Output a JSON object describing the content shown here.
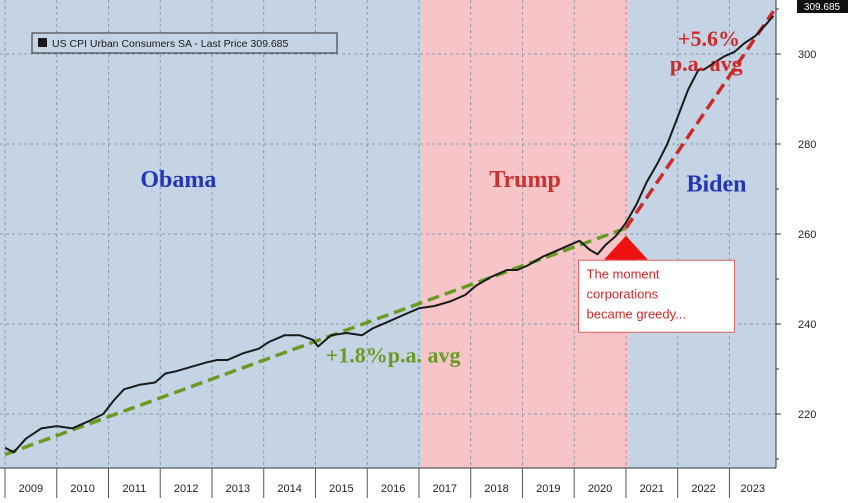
{
  "chart_data": {
    "type": "line",
    "legend": {
      "label": "US CPI Urban Consumers SA - Last Price 309.685",
      "placement": "top-left"
    },
    "last_price_badge": "309.685",
    "x_tick_labels": [
      "2009",
      "2010",
      "2011",
      "2012",
      "2013",
      "2014",
      "2015",
      "2016",
      "2017",
      "2018",
      "2019",
      "2020",
      "2021",
      "2022",
      "2023"
    ],
    "xlim": [
      2009,
      2023.9
    ],
    "ylim": [
      208,
      312
    ],
    "y_ticks": [
      220,
      240,
      260,
      280,
      300
    ],
    "grid": true,
    "y_axis_side": "right",
    "periods": [
      {
        "label": "Obama",
        "start": 2009.0,
        "end": 2017.05,
        "color": "#c5d4e5",
        "label_color": "#2436b5",
        "label_x": 2012.35,
        "label_y": 270.5
      },
      {
        "label": "Trump",
        "start": 2017.05,
        "end": 2021.05,
        "color": "#f7c5c7",
        "label_color": "#c93232",
        "label_x": 2019.05,
        "label_y": 270.5
      },
      {
        "label": "Biden",
        "start": 2021.05,
        "end": 2023.9,
        "color": "#c5d4e5",
        "label_color": "#2436b5",
        "label_x": 2022.75,
        "label_y": 269.5
      }
    ],
    "series": [
      {
        "color": "#1a1a1a",
        "x": [
          2009.0,
          2009.17,
          2009.4,
          2009.7,
          2010.0,
          2010.3,
          2010.6,
          2010.9,
          2011.1,
          2011.3,
          2011.6,
          2011.9,
          2012.1,
          2012.3,
          2012.6,
          2012.9,
          2013.1,
          2013.3,
          2013.6,
          2013.9,
          2014.1,
          2014.4,
          2014.7,
          2014.95,
          2015.05,
          2015.3,
          2015.6,
          2015.9,
          2016.1,
          2016.4,
          2016.7,
          2017.0,
          2017.3,
          2017.6,
          2017.9,
          2018.1,
          2018.4,
          2018.7,
          2018.9,
          2019.1,
          2019.4,
          2019.7,
          2019.9,
          2020.1,
          2020.3,
          2020.45,
          2020.6,
          2020.8,
          2021.0,
          2021.2,
          2021.4,
          2021.6,
          2021.8,
          2022.0,
          2022.2,
          2022.4,
          2022.5,
          2022.7,
          2022.9,
          2023.1,
          2023.3,
          2023.5,
          2023.7,
          2023.85
        ],
        "y": [
          212.5,
          211.5,
          214.5,
          216.8,
          217.3,
          216.8,
          218.3,
          220.0,
          223.0,
          225.5,
          226.5,
          227.0,
          229.0,
          229.5,
          230.5,
          231.5,
          232.0,
          232.0,
          233.5,
          234.5,
          236.0,
          237.5,
          237.5,
          236.5,
          235.0,
          237.5,
          238.0,
          237.5,
          239.0,
          240.5,
          242.0,
          243.5,
          244.0,
          245.0,
          246.5,
          248.5,
          250.5,
          252.0,
          252.0,
          253.0,
          255.0,
          256.5,
          257.5,
          258.5,
          256.5,
          255.5,
          257.5,
          259.5,
          262.5,
          266.5,
          271.5,
          275.5,
          280.0,
          286.0,
          292.0,
          296.5,
          296.5,
          298.0,
          299.5,
          300.5,
          302.5,
          304.0,
          306.5,
          308.5
        ]
      }
    ],
    "trendlines": [
      {
        "label": "+1.8%p.a. avg",
        "color": "#6a9a24",
        "from": [
          2009.0,
          211.0
        ],
        "to": [
          2021.0,
          261.3
        ],
        "label_x": 2016.5,
        "label_y": 231.5
      },
      {
        "label": "+5.6%\np.a. avg",
        "color": "#cc2a2a",
        "from": [
          2021.0,
          261.3
        ],
        "to": [
          2023.85,
          309.5
        ],
        "label_x": 2021.85,
        "label_y": 301.8
      }
    ],
    "annotations": [
      {
        "text": "The moment\ncorporations\nbecame greedy...",
        "color": "#d02a2a",
        "border_color": "#e06060",
        "x": 2020.2,
        "y": 243.5,
        "arrow_x": 2021.0,
        "arrow_tip_y": 259.6,
        "arrow_color": "#ee1111"
      }
    ]
  }
}
